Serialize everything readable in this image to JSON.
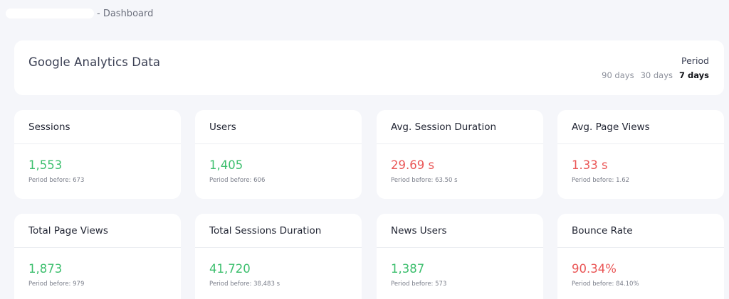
{
  "breadcrumb": {
    "suffix": "- Dashboard"
  },
  "header": {
    "title": "Google Analytics Data",
    "period_label": "Period",
    "period_options": [
      {
        "label": "90 days",
        "active": false
      },
      {
        "label": "30 days",
        "active": false
      },
      {
        "label": "7 days",
        "active": true
      }
    ]
  },
  "cards": [
    {
      "title": "Sessions",
      "value": "1,553",
      "trend": "good",
      "before": "Period before: 673"
    },
    {
      "title": "Users",
      "value": "1,405",
      "trend": "good",
      "before": "Period before: 606"
    },
    {
      "title": "Avg. Session Duration",
      "value": "29.69 s",
      "trend": "bad",
      "before": "Period before: 63.50 s"
    },
    {
      "title": "Avg. Page Views",
      "value": "1.33 s",
      "trend": "bad",
      "before": "Period before: 1.62"
    },
    {
      "title": "Total Page Views",
      "value": "1,873",
      "trend": "good",
      "before": "Period before: 979"
    },
    {
      "title": "Total Sessions Duration",
      "value": "41,720",
      "trend": "good",
      "before": "Period before: 38,483 s"
    },
    {
      "title": "News Users",
      "value": "1,387",
      "trend": "good",
      "before": "Period before: 573"
    },
    {
      "title": "Bounce Rate",
      "value": "90.34%",
      "trend": "bad",
      "before": "Period before: 84.10%"
    }
  ],
  "colors": {
    "good": "#3dbf6e",
    "bad": "#ea5656",
    "background": "#f5f6fa"
  }
}
